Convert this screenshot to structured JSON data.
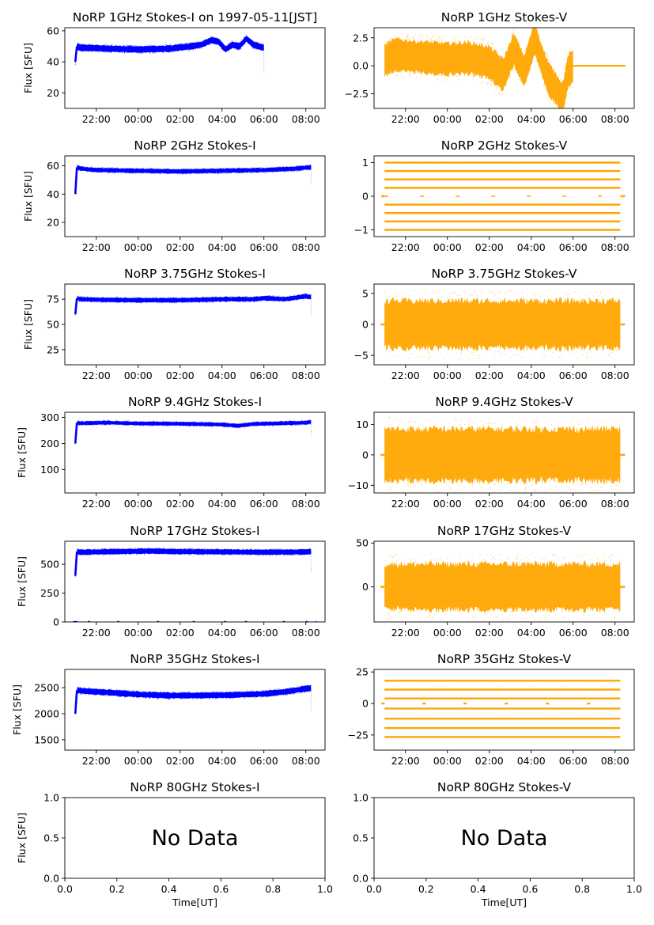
{
  "figure": {
    "background": "#ffffff",
    "xlabel": "Time[UT]"
  },
  "colors": {
    "stokes_i": "#0000ff",
    "stokes_v": "#ffa500"
  },
  "time_ticks": [
    "22:00",
    "00:00",
    "02:00",
    "04:00",
    "06:00",
    "08:00"
  ],
  "nodata_ticks_x": [
    "0.0",
    "0.2",
    "0.4",
    "0.6",
    "0.8",
    "1.0"
  ],
  "nodata_ticks_y": [
    "0.0",
    "0.5",
    "1.0"
  ],
  "nodata_text": "No Data",
  "ylabel": "Flux [SFU]",
  "chart_data": [
    {
      "id": "1ghz-i",
      "type": "scatter",
      "title": "NoRP 1GHz Stokes-I on 1997-05-11[JST]",
      "ylabel": "Flux [SFU]",
      "xlim": [
        "20:30",
        "08:55"
      ],
      "ylim": [
        10,
        62
      ],
      "yticks": [
        "20",
        "40",
        "60"
      ],
      "series": [
        {
          "color": "#0000ff",
          "x_start": "21:00",
          "x_end": "06:00",
          "x": [
            "21:00",
            "21:05",
            "21:15",
            "21:40",
            "22:30",
            "00:00",
            "01:30",
            "02:30",
            "03:00",
            "03:30",
            "03:50",
            "04:10",
            "04:30",
            "04:50",
            "05:10",
            "05:30",
            "05:45",
            "06:00"
          ],
          "values": [
            40,
            50,
            49,
            49,
            48.5,
            48,
            48.5,
            50,
            51,
            54,
            53,
            48,
            51,
            50,
            55,
            51,
            50,
            49
          ],
          "spread": 2
        }
      ]
    },
    {
      "id": "1ghz-v",
      "type": "scatter",
      "title": "NoRP 1GHz Stokes-V",
      "ylabel": "",
      "xlim": [
        "20:30",
        "08:55"
      ],
      "ylim": [
        -3.8,
        3.4
      ],
      "yticks": [
        "−2.5",
        "0.0",
        "2.5"
      ],
      "series": [
        {
          "color": "#ffa500",
          "x_start": "21:00",
          "x_end": "06:00",
          "x": [
            "21:00",
            "21:30",
            "22:30",
            "00:00",
            "01:00",
            "02:00",
            "02:40",
            "03:10",
            "03:40",
            "04:10",
            "04:30",
            "04:50",
            "05:10",
            "05:30",
            "05:45",
            "06:00"
          ],
          "values": [
            0.5,
            1.0,
            0.8,
            0.6,
            0.7,
            0.3,
            -0.8,
            1.5,
            -0.5,
            2.5,
            0.5,
            -1.2,
            -2.0,
            -3.0,
            -0.5,
            0
          ],
          "spread": 1.4
        },
        {
          "color": "#ffa500",
          "x_start": "05:45",
          "x_end": "08:30",
          "x": [
            "05:45",
            "08:30"
          ],
          "values": [
            0,
            0
          ],
          "spread": 0
        }
      ]
    },
    {
      "id": "2ghz-i",
      "type": "scatter",
      "title": "NoRP 2GHz Stokes-I",
      "ylabel": "Flux [SFU]",
      "xlim": [
        "20:30",
        "08:55"
      ],
      "ylim": [
        10,
        67
      ],
      "yticks": [
        "20",
        "40",
        "60"
      ],
      "series": [
        {
          "color": "#0000ff",
          "x_start": "21:00",
          "x_end": "08:15",
          "x": [
            "21:00",
            "21:05",
            "21:15",
            "22:00",
            "00:00",
            "02:00",
            "04:00",
            "06:00",
            "07:30",
            "08:15"
          ],
          "values": [
            40,
            59,
            58,
            57,
            56.5,
            56,
            56.5,
            57,
            58,
            59
          ],
          "spread": 1.5
        }
      ]
    },
    {
      "id": "2ghz-v",
      "type": "scatter",
      "title": "NoRP 2GHz Stokes-V",
      "ylabel": "",
      "xlim": [
        "20:30",
        "08:55"
      ],
      "ylim": [
        -1.2,
        1.2
      ],
      "yticks": [
        "−1",
        "0",
        "1"
      ],
      "levels": [
        -1,
        -0.75,
        -0.5,
        -0.25,
        0,
        0.25,
        0.5,
        0.75,
        1
      ],
      "series": [
        {
          "color": "#ffa500",
          "x_start": "21:00",
          "x_end": "08:15"
        }
      ]
    },
    {
      "id": "375ghz-i",
      "type": "scatter",
      "title": "NoRP 3.75GHz Stokes-I",
      "ylabel": "Flux [SFU]",
      "xlim": [
        "20:30",
        "08:55"
      ],
      "ylim": [
        10,
        90
      ],
      "yticks": [
        "25",
        "50",
        "75"
      ],
      "series": [
        {
          "color": "#0000ff",
          "x_start": "21:00",
          "x_end": "08:15",
          "x": [
            "21:00",
            "21:05",
            "21:15",
            "22:00",
            "00:00",
            "02:00",
            "04:00",
            "05:30",
            "06:00",
            "07:00",
            "08:00",
            "08:15"
          ],
          "values": [
            60,
            76,
            75,
            74.5,
            74,
            74,
            75,
            75,
            76,
            75,
            78,
            77
          ],
          "spread": 2.2
        }
      ]
    },
    {
      "id": "375ghz-v",
      "type": "scatter",
      "title": "NoRP 3.75GHz Stokes-V",
      "ylabel": "",
      "xlim": [
        "20:30",
        "08:55"
      ],
      "ylim": [
        -6.5,
        6.5
      ],
      "yticks": [
        "−5",
        "0",
        "5"
      ],
      "series": [
        {
          "color": "#ffa500",
          "x_start": "21:00",
          "x_end": "08:15",
          "x": [
            "21:00",
            "08:15"
          ],
          "values": [
            0,
            0
          ],
          "spread": 3.8
        }
      ]
    },
    {
      "id": "94ghz-i",
      "type": "scatter",
      "title": "NoRP 9.4GHz Stokes-I",
      "ylabel": "Flux [SFU]",
      "xlim": [
        "20:30",
        "08:55"
      ],
      "ylim": [
        10,
        320
      ],
      "yticks": [
        "100",
        "200",
        "300"
      ],
      "series": [
        {
          "color": "#0000ff",
          "x_start": "21:00",
          "x_end": "08:15",
          "x": [
            "21:00",
            "21:05",
            "21:15",
            "22:30",
            "00:00",
            "02:00",
            "04:00",
            "04:45",
            "05:30",
            "06:30",
            "08:00",
            "08:15"
          ],
          "values": [
            200,
            280,
            278,
            280,
            277,
            276,
            273,
            268,
            275,
            277,
            280,
            283
          ],
          "spread": 7
        }
      ]
    },
    {
      "id": "94ghz-v",
      "type": "scatter",
      "title": "NoRP 9.4GHz Stokes-V",
      "ylabel": "",
      "xlim": [
        "20:30",
        "08:55"
      ],
      "ylim": [
        -12.5,
        14
      ],
      "yticks": [
        "−10",
        "0",
        "10"
      ],
      "series": [
        {
          "color": "#ffa500",
          "x_start": "21:00",
          "x_end": "08:15",
          "x": [
            "21:00",
            "08:15"
          ],
          "values": [
            0,
            0
          ],
          "spread": 8.5
        }
      ]
    },
    {
      "id": "17ghz-i",
      "type": "scatter",
      "title": "NoRP 17GHz Stokes-I",
      "ylabel": "Flux [SFU]",
      "xlim": [
        "20:30",
        "08:55"
      ],
      "ylim": [
        0,
        700
      ],
      "yticks": [
        "0",
        "250",
        "500"
      ],
      "series": [
        {
          "color": "#0000ff",
          "x_start": "21:00",
          "x_end": "08:15",
          "x": [
            "21:00",
            "21:05",
            "21:15",
            "23:00",
            "00:30",
            "02:00",
            "04:00",
            "06:00",
            "08:00",
            "08:15"
          ],
          "values": [
            400,
            610,
            605,
            610,
            615,
            610,
            608,
            605,
            607,
            610
          ],
          "spread": 22
        }
      ]
    },
    {
      "id": "17ghz-v",
      "type": "scatter",
      "title": "NoRP 17GHz Stokes-V",
      "ylabel": "",
      "xlim": [
        "20:30",
        "08:55"
      ],
      "ylim": [
        -40,
        52
      ],
      "yticks": [
        "0",
        "50"
      ],
      "series": [
        {
          "color": "#ffa500",
          "x_start": "21:00",
          "x_end": "08:15",
          "x": [
            "21:00",
            "08:15"
          ],
          "values": [
            0,
            0
          ],
          "spread": 26
        }
      ]
    },
    {
      "id": "35ghz-i",
      "type": "scatter",
      "title": "NoRP 35GHz Stokes-I",
      "ylabel": "Flux [SFU]",
      "xlim": [
        "20:30",
        "08:55"
      ],
      "ylim": [
        1300,
        2850
      ],
      "yticks": [
        "1500",
        "2000",
        "2500"
      ],
      "series": [
        {
          "color": "#0000ff",
          "x_start": "21:00",
          "x_end": "08:15",
          "x": [
            "21:00",
            "21:05",
            "21:15",
            "22:00",
            "00:00",
            "01:30",
            "03:00",
            "04:30",
            "06:00",
            "07:00",
            "08:00",
            "08:15"
          ],
          "values": [
            2000,
            2450,
            2440,
            2420,
            2370,
            2350,
            2350,
            2360,
            2380,
            2420,
            2480,
            2490
          ],
          "spread": 55
        }
      ]
    },
    {
      "id": "35ghz-v",
      "type": "scatter",
      "title": "NoRP 35GHz Stokes-V",
      "ylabel": "",
      "xlim": [
        "20:30",
        "08:55"
      ],
      "ylim": [
        -37,
        27
      ],
      "yticks": [
        "−25",
        "0",
        "25"
      ],
      "levels": [
        -26.5,
        -19.5,
        -12,
        -4,
        4,
        11,
        18
      ],
      "series": [
        {
          "color": "#ffa500",
          "x_start": "21:00",
          "x_end": "08:15"
        }
      ]
    },
    {
      "id": "80ghz-i",
      "type": "scatter",
      "title": "NoRP 80GHz Stokes-I",
      "ylabel": "Flux [SFU]",
      "xlim": [
        0,
        1
      ],
      "ylim": [
        0,
        1
      ],
      "series": []
    },
    {
      "id": "80ghz-v",
      "type": "scatter",
      "title": "NoRP 80GHz Stokes-V",
      "ylabel": "",
      "xlim": [
        0,
        1
      ],
      "ylim": [
        0,
        1
      ],
      "series": []
    }
  ]
}
